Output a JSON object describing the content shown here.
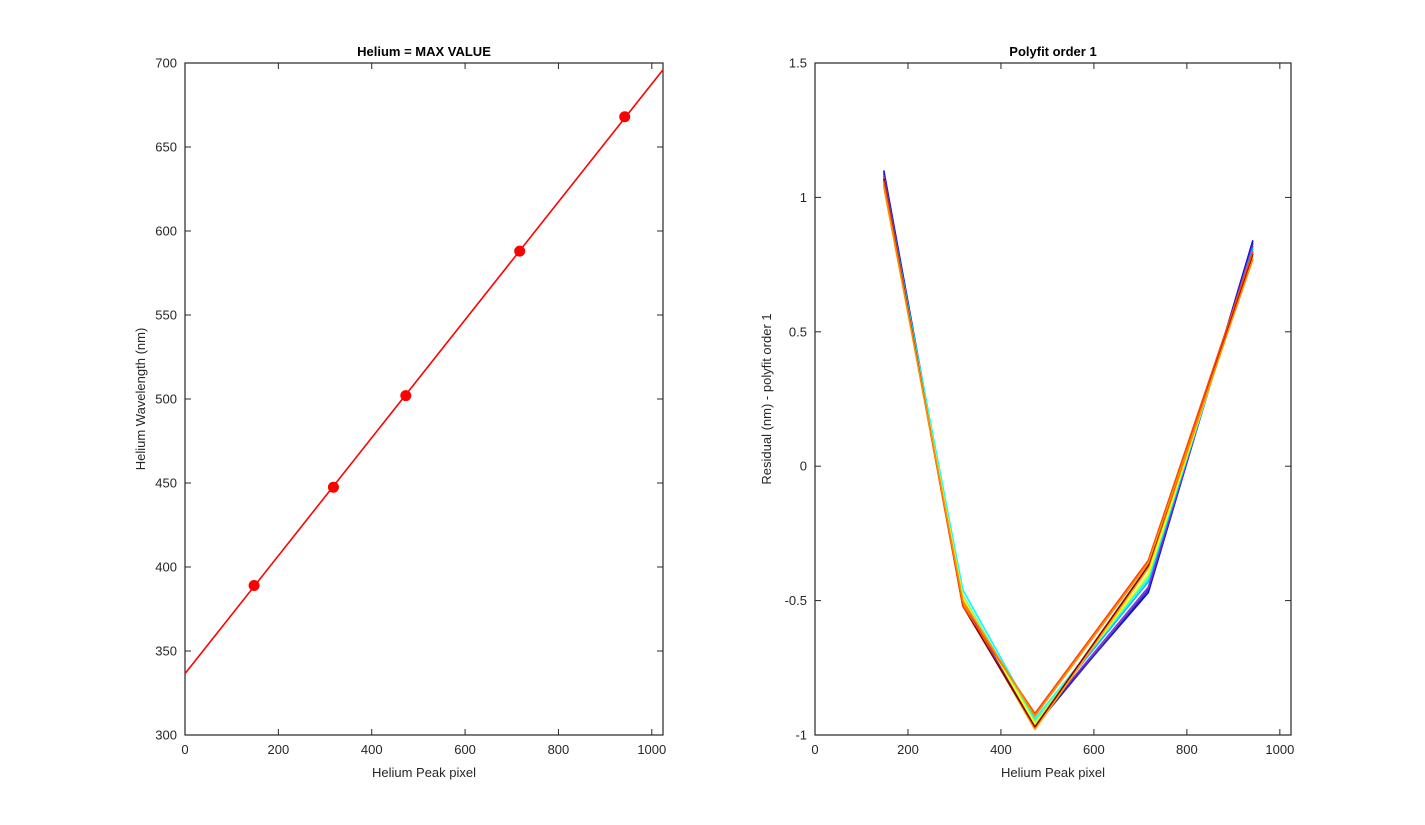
{
  "chart_data": [
    {
      "type": "scatter",
      "title": "Helium = MAX VALUE",
      "xlabel": "Helium Peak pixel",
      "ylabel": "Helium Wavelength (nm)",
      "xlim": [
        0,
        1024
      ],
      "ylim": [
        300,
        700
      ],
      "xticks": [
        0,
        200,
        400,
        600,
        800,
        1000
      ],
      "yticks": [
        300,
        350,
        400,
        450,
        500,
        550,
        600,
        650,
        700
      ],
      "grid": false,
      "color": "#ff0000",
      "points": {
        "x": [
          148,
          318,
          473,
          717,
          942
        ],
        "y": [
          389,
          447.5,
          502,
          588,
          668
        ]
      },
      "fit_line": {
        "x": [
          0,
          1024
        ],
        "y": [
          336.5,
          696
        ]
      }
    },
    {
      "type": "line",
      "title": "Polyfit order 1",
      "xlabel": "Helium Peak pixel",
      "ylabel": "Residual (nm) - polyfit order 1",
      "xlim": [
        0,
        1024
      ],
      "ylim": [
        -1,
        1.5
      ],
      "xticks": [
        0,
        200,
        400,
        600,
        800,
        1000
      ],
      "yticks": [
        -1,
        -0.5,
        0,
        0.5,
        1,
        1.5
      ],
      "grid": false,
      "x": [
        148,
        318,
        473,
        717,
        942
      ],
      "series": [
        {
          "color": "#0000ff",
          "values": [
            1.1,
            -0.5,
            -0.96,
            -0.47,
            0.84
          ]
        },
        {
          "color": "#2e2ea8",
          "values": [
            1.09,
            -0.51,
            -0.97,
            -0.46,
            0.83
          ]
        },
        {
          "color": "#8a2be2",
          "values": [
            1.08,
            -0.5,
            -0.96,
            -0.45,
            0.82
          ]
        },
        {
          "color": "#00bfff",
          "values": [
            1.07,
            -0.48,
            -0.95,
            -0.43,
            0.81
          ]
        },
        {
          "color": "#00ffff",
          "values": [
            1.06,
            -0.46,
            -0.94,
            -0.42,
            0.8
          ]
        },
        {
          "color": "#7fff7f",
          "values": [
            1.05,
            -0.48,
            -0.95,
            -0.41,
            0.8
          ]
        },
        {
          "color": "#ffff00",
          "values": [
            1.04,
            -0.49,
            -0.96,
            -0.4,
            0.79
          ]
        },
        {
          "color": "#ffa500",
          "values": [
            1.05,
            -0.51,
            -0.98,
            -0.38,
            0.78
          ]
        },
        {
          "color": "#8b0000",
          "values": [
            1.07,
            -0.52,
            -0.97,
            -0.37,
            0.79
          ]
        },
        {
          "color": "#ff4500",
          "values": [
            1.06,
            -0.52,
            -0.92,
            -0.35,
            0.8
          ]
        },
        {
          "color": "#ff8c00",
          "values": [
            1.04,
            -0.5,
            -0.93,
            -0.36,
            0.77
          ]
        }
      ]
    }
  ]
}
